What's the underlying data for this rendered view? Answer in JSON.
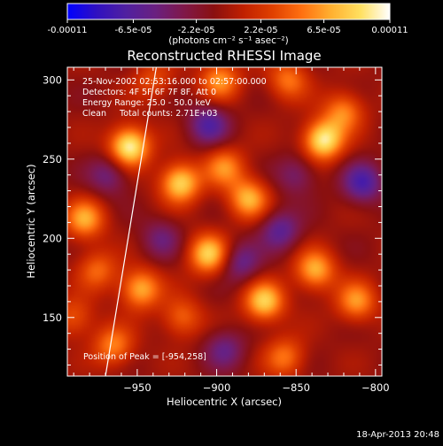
{
  "colorbar": {
    "tick_labels": [
      "-0.00011",
      "-6.5e-05",
      "-2.2e-05",
      "2.2e-05",
      "6.5e-05",
      "0.00011"
    ],
    "range": [
      -0.00011,
      0.00011
    ],
    "unit_label": "(photons cm⁻² s⁻¹ asec⁻²)",
    "colors": [
      "#0000ff",
      "#3010c0",
      "#5020a0",
      "#6a2080",
      "#801848",
      "#8a1010",
      "#c02000",
      "#e04000",
      "#ff7010",
      "#ffb030",
      "#ffe060",
      "#ffffff"
    ]
  },
  "chart_data": {
    "type": "heatmap",
    "title": "Reconstructed RHESSI Image",
    "xlabel": "Heliocentric X (arcsec)",
    "ylabel": "Heliocentric Y (arcsec)",
    "xlim": [
      -994,
      -796
    ],
    "ylim": [
      113,
      308
    ],
    "xticks": [
      -950,
      -900,
      -850,
      -800
    ],
    "yticks": [
      150,
      200,
      250,
      300
    ],
    "annotations": [
      "25-Nov-2002 02:53:16.000 to 02:57:00.000",
      "Detectors: 4F 5F 6F 7F 8F, Att 0",
      "Energy Range: 25.0 - 50.0 keV",
      "Clean     Total counts: 2.71E+03"
    ],
    "peak_label": "Position of Peak = [-954,258]",
    "peak": [
      -954,
      258
    ],
    "limb_line": [
      [
        -970,
        113
      ],
      [
        -938,
        308
      ]
    ],
    "sources": [
      {
        "x": -955,
        "y": 258,
        "v": 1.0
      },
      {
        "x": -983,
        "y": 212,
        "v": 0.65
      },
      {
        "x": -975,
        "y": 180,
        "v": 0.45
      },
      {
        "x": -948,
        "y": 168,
        "v": 0.7
      },
      {
        "x": -965,
        "y": 132,
        "v": 0.55
      },
      {
        "x": -923,
        "y": 235,
        "v": 0.85
      },
      {
        "x": -922,
        "y": 150,
        "v": 0.45
      },
      {
        "x": -905,
        "y": 190,
        "v": 0.8
      },
      {
        "x": -895,
        "y": 245,
        "v": 0.55
      },
      {
        "x": -880,
        "y": 225,
        "v": 0.7
      },
      {
        "x": -870,
        "y": 160,
        "v": 0.8
      },
      {
        "x": -857,
        "y": 125,
        "v": 0.5
      },
      {
        "x": -838,
        "y": 180,
        "v": 0.7
      },
      {
        "x": -833,
        "y": 262,
        "v": 0.95
      },
      {
        "x": -820,
        "y": 280,
        "v": 0.55
      },
      {
        "x": -812,
        "y": 160,
        "v": 0.6
      },
      {
        "x": -898,
        "y": 300,
        "v": 0.6
      },
      {
        "x": -855,
        "y": 300,
        "v": 0.5
      },
      {
        "x": -990,
        "y": 150,
        "v": 0.4
      },
      {
        "x": -940,
        "y": 300,
        "v": 0.35
      },
      {
        "x": -905,
        "y": 272,
        "v": -0.55
      },
      {
        "x": -860,
        "y": 205,
        "v": -0.5
      },
      {
        "x": -808,
        "y": 235,
        "v": -0.6
      },
      {
        "x": -885,
        "y": 185,
        "v": -0.45
      },
      {
        "x": -935,
        "y": 200,
        "v": -0.35
      },
      {
        "x": -968,
        "y": 240,
        "v": -0.4
      },
      {
        "x": -895,
        "y": 130,
        "v": -0.4
      },
      {
        "x": -850,
        "y": 240,
        "v": -0.35
      }
    ]
  },
  "footer": {
    "date": "18-Apr-2013 20:48"
  }
}
